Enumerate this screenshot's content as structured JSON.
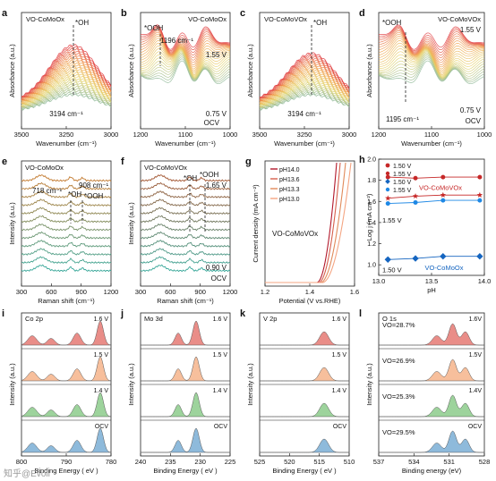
{
  "figure": {
    "panels": [
      {
        "id": "a",
        "letter": "a",
        "title": "VO-CoMoOx",
        "xlabel": "Wavenumber (cm⁻¹)",
        "ylabel": "Absorbance (a.u.)",
        "xticks": [
          "3500",
          "3250",
          "3000"
        ],
        "annotations": [
          "*OH",
          "3194 cm⁻¹"
        ]
      },
      {
        "id": "b",
        "letter": "b",
        "title": "VO-CoMoOx",
        "xlabel": "Wavenumber (cm⁻¹)",
        "ylabel": "Absorbance (a.u.)",
        "xticks": [
          "1200",
          "1100",
          "1000"
        ],
        "annotations": [
          "*OOH",
          "1196 cm⁻¹",
          "1.55 V",
          "0.75 V",
          "OCV"
        ]
      },
      {
        "id": "c",
        "letter": "c",
        "title": "VO-CoMoVOx",
        "xlabel": "Wavenumber (cm⁻¹)",
        "ylabel": "Absorbance (a.u.)",
        "xticks": [
          "3500",
          "3250",
          "3000"
        ],
        "annotations": [
          "*OH",
          "3194 cm⁻¹"
        ]
      },
      {
        "id": "d",
        "letter": "d",
        "title": "VO-CoMoVOx",
        "xlabel": "Wavenumber (cm⁻¹)",
        "ylabel": "Absorbance (a.u.)",
        "xticks": [
          "1200",
          "1100",
          "1000"
        ],
        "annotations": [
          "*OOH",
          "1.55 V",
          "1195 cm⁻¹",
          "0.75 V",
          "OCV"
        ]
      },
      {
        "id": "e",
        "letter": "e",
        "title": "VO-CoMoOx",
        "xlabel": "Raman shift (cm⁻¹)",
        "ylabel": "Intensity (a.u.)",
        "xticks": [
          "300",
          "600",
          "900",
          "1200"
        ],
        "annotations": [
          "718 cm⁻¹",
          "*OH",
          "908 cm⁻¹",
          "*OOH"
        ]
      },
      {
        "id": "f",
        "letter": "f",
        "title": "VO-CoMoVOx",
        "xlabel": "Raman shift (cm⁻¹)",
        "ylabel": "Intensity (a.u.)",
        "xticks": [
          "300",
          "600",
          "900",
          "1200"
        ],
        "annotations": [
          "*OH",
          "*OOH",
          "1.65 V",
          "0.90 V",
          "OCV"
        ]
      },
      {
        "id": "g",
        "letter": "g",
        "title": "VO-CoMoVOx",
        "xlabel": "Potential (V vs.RHE)",
        "ylabel": "Current density (mA cm⁻²)",
        "xticks": [
          "1.2",
          "1.4",
          "1.6"
        ],
        "annotations": []
      },
      {
        "id": "h",
        "letter": "h",
        "title": "",
        "xlabel": "pH",
        "ylabel": "Log j (mA cm⁻²)",
        "xticks": [
          "13.0",
          "13.5",
          "14.0"
        ],
        "yticks": [
          "1.0",
          "1.2",
          "1.4",
          "1.6",
          "1.8",
          "2.0"
        ],
        "annotations": [
          "1.55 V",
          "1.50 V",
          "VO-CoMoVOx",
          "VO-CoMoOx"
        ]
      },
      {
        "id": "i",
        "letter": "i",
        "title": "Co 2p",
        "xlabel": "Binding Energy ( eV )",
        "ylabel": "Intensity (a.u.)",
        "xticks": [
          "800",
          "790",
          "780"
        ],
        "annotations": []
      },
      {
        "id": "j",
        "letter": "j",
        "title": "Mo 3d",
        "xlabel": "Binding Energy ( eV )",
        "ylabel": "Intensity (a.u.)",
        "xticks": [
          "240",
          "235",
          "230",
          "225"
        ],
        "annotations": []
      },
      {
        "id": "k",
        "letter": "k",
        "title": "V 2p",
        "xlabel": "Binding Energy ( eV )",
        "ylabel": "Intensity (a.u.)",
        "xticks": [
          "525",
          "520",
          "515",
          "510"
        ],
        "annotations": []
      },
      {
        "id": "l",
        "letter": "l",
        "title": "O 1s",
        "xlabel": "Binding energy (eV)",
        "ylabel": "Intensity (a.u.)",
        "xticks": [
          "537",
          "534",
          "531",
          "528"
        ],
        "annotations": []
      }
    ],
    "watermark": "知乎@Evoll"
  },
  "chart_data": [
    {
      "panel": "g",
      "type": "line",
      "title": "VO-CoMoVOx",
      "xlabel": "Potential (V vs.RHE)",
      "ylabel": "Current density (mA cm⁻²)",
      "xlim": [
        1.2,
        1.7
      ],
      "series": [
        {
          "name": "pH14.0",
          "color": "#b2182b",
          "onset": 1.49,
          "x_at_top": 1.6
        },
        {
          "name": "pH13.6",
          "color": "#d6604d",
          "onset": 1.5,
          "x_at_top": 1.62
        },
        {
          "name": "pH13.3",
          "color": "#e08a5a",
          "onset": 1.51,
          "x_at_top": 1.65
        },
        {
          "name": "pH13.0",
          "color": "#f4a582",
          "onset": 1.52,
          "x_at_top": 1.68
        }
      ]
    },
    {
      "panel": "h",
      "type": "scatter",
      "xlabel": "pH",
      "ylabel": "Log j (mA cm⁻²)",
      "xlim": [
        12.9,
        14.05
      ],
      "ylim": [
        0.9,
        2.0
      ],
      "x": [
        13.0,
        13.3,
        13.6,
        14.0
      ],
      "series": [
        {
          "name": "1.50 V",
          "marker": "star",
          "color": "#c62828",
          "values": [
            1.63,
            1.65,
            1.66,
            1.66
          ]
        },
        {
          "name": "1.55 V",
          "marker": "circle",
          "color": "#c62828",
          "values": [
            1.83,
            1.82,
            1.83,
            1.83
          ]
        },
        {
          "name": "1.50 V",
          "marker": "diamond",
          "color": "#1565c0",
          "values": [
            1.05,
            1.06,
            1.08,
            1.08
          ]
        },
        {
          "name": "1.55 V",
          "marker": "circle",
          "color": "#1e88e5",
          "values": [
            1.58,
            1.59,
            1.61,
            1.61
          ]
        }
      ]
    },
    {
      "panel": "l",
      "type": "area",
      "title": "O 1s",
      "xlabel": "Binding energy (eV)",
      "ylabel": "Intensity (a.u.)",
      "rows": [
        {
          "potential": "1.6V",
          "vo_ratio": "VO=28.7%",
          "color": "#d73027"
        },
        {
          "potential": "1.5V",
          "vo_ratio": "VO=26.9%",
          "color": "#f08a4b"
        },
        {
          "potential": "1.4V",
          "vo_ratio": "VO=25.3%",
          "color": "#4daf4a"
        },
        {
          "potential": "OCV",
          "vo_ratio": "VO=29.5%",
          "color": "#3182bd"
        }
      ]
    },
    {
      "panel": "i",
      "type": "area",
      "title": "Co 2p",
      "rows": [
        {
          "potential": "1.6 V",
          "color": "#d73027"
        },
        {
          "potential": "1.5 V",
          "color": "#f08a4b"
        },
        {
          "potential": "1.4 V",
          "color": "#4daf4a"
        },
        {
          "potential": "OCV",
          "color": "#3182bd"
        }
      ]
    },
    {
      "panel": "j",
      "type": "area",
      "title": "Mo 3d",
      "rows": [
        {
          "potential": "1.6 V",
          "color": "#d73027"
        },
        {
          "potential": "1.5 V",
          "color": "#f08a4b"
        },
        {
          "potential": "1.4 V",
          "color": "#4daf4a"
        },
        {
          "potential": "OCV",
          "color": "#3182bd"
        }
      ]
    },
    {
      "panel": "k",
      "type": "area",
      "title": "V 2p",
      "rows": [
        {
          "potential": "1.6 V",
          "color": "#d73027"
        },
        {
          "potential": "1.5 V",
          "color": "#f08a4b"
        },
        {
          "potential": "1.4 V",
          "color": "#4daf4a"
        },
        {
          "potential": "OCV",
          "color": "#3182bd"
        }
      ]
    }
  ]
}
